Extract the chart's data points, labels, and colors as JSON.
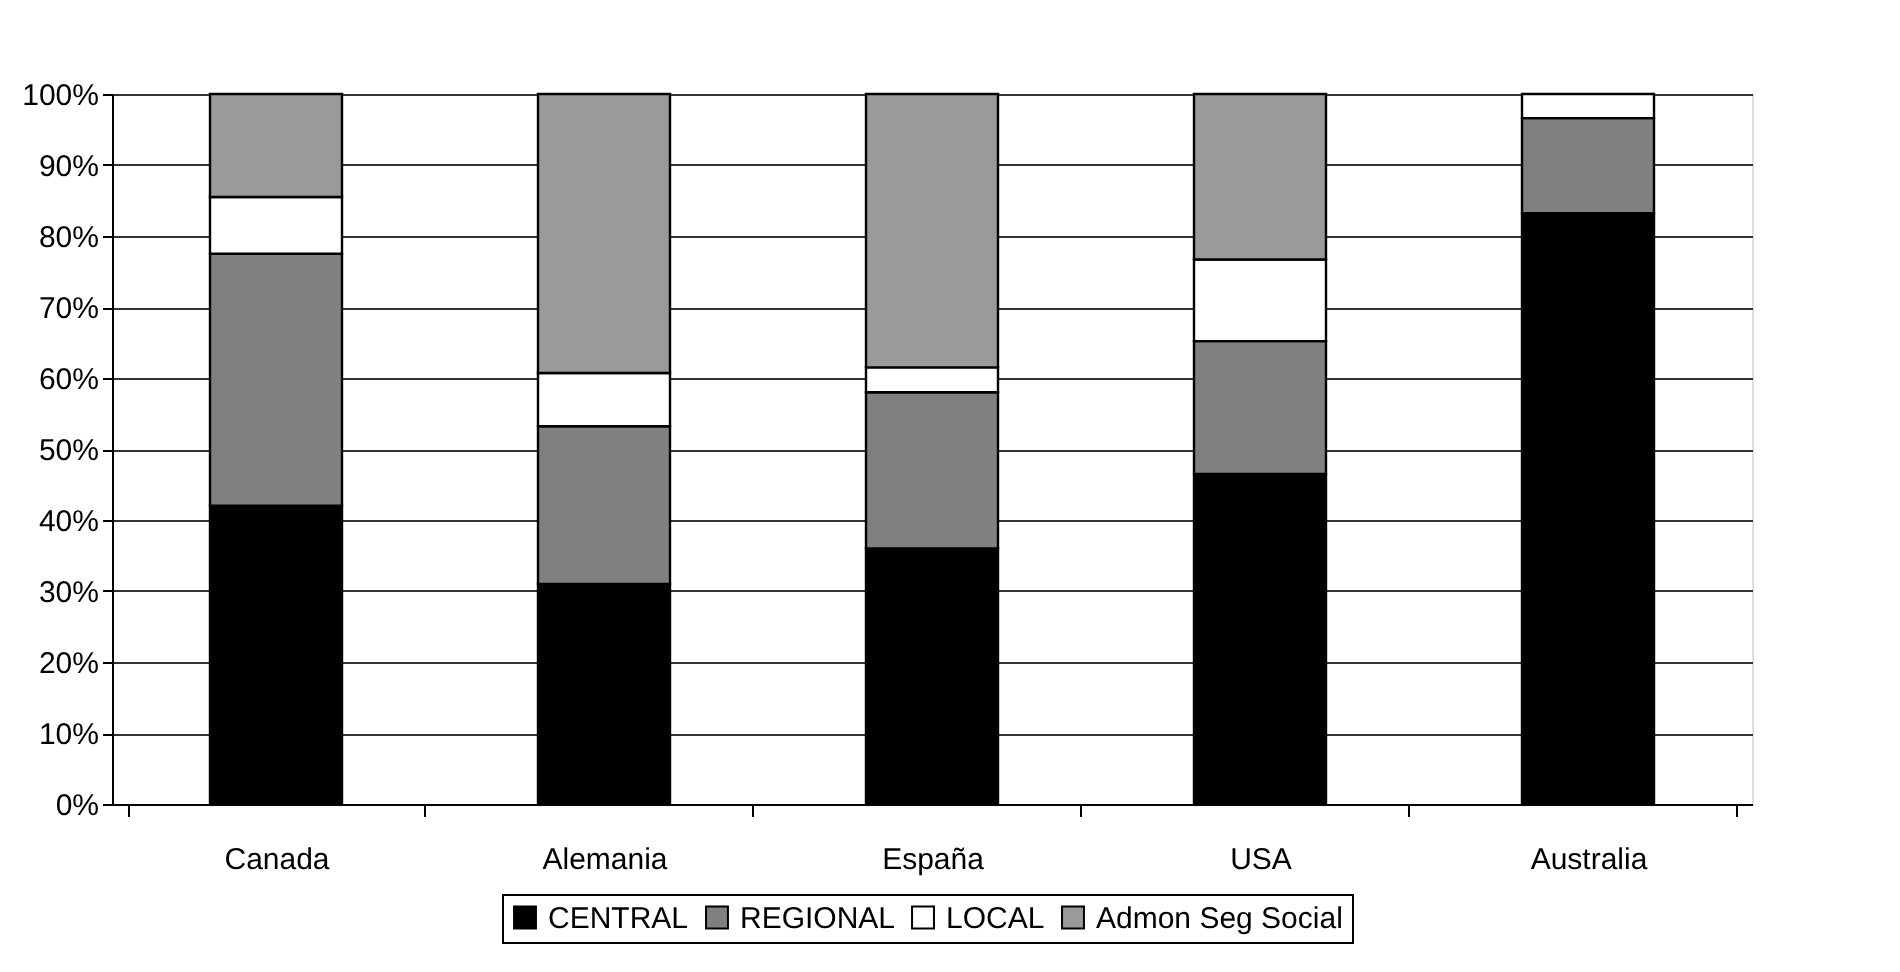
{
  "chart_data": {
    "type": "bar",
    "stacked": true,
    "categories": [
      "Canada",
      "Alemania",
      "España",
      "USA",
      "Australia"
    ],
    "series": [
      {
        "name": "CENTRAL",
        "color": "#000000",
        "values": [
          42,
          31,
          36,
          46.5,
          83.2
        ]
      },
      {
        "name": "REGIONAL",
        "color": "#808080",
        "values": [
          35.5,
          22.2,
          22,
          18.7,
          13.4
        ]
      },
      {
        "name": "LOCAL",
        "color": "#ffffff",
        "values": [
          8,
          7.5,
          3.5,
          11.5,
          3.4
        ]
      },
      {
        "name": "Admon Seg Social",
        "color": "#9a9a9a",
        "values": [
          14.5,
          39.3,
          38.5,
          23.3,
          null
        ]
      }
    ],
    "ylim": [
      0,
      100
    ],
    "yticks": [
      {
        "value": 0,
        "label": "0%"
      },
      {
        "value": 10,
        "label": "10%"
      },
      {
        "value": 20,
        "label": "20%"
      },
      {
        "value": 30,
        "label": "30%"
      },
      {
        "value": 40,
        "label": "40%"
      },
      {
        "value": 50,
        "label": "50%"
      },
      {
        "value": 60,
        "label": "60%"
      },
      {
        "value": 70,
        "label": "70%"
      },
      {
        "value": 80,
        "label": "80%"
      },
      {
        "value": 90,
        "label": "90%"
      },
      {
        "value": 100,
        "label": "100%"
      }
    ],
    "grid": "y",
    "legend": "bottom"
  }
}
